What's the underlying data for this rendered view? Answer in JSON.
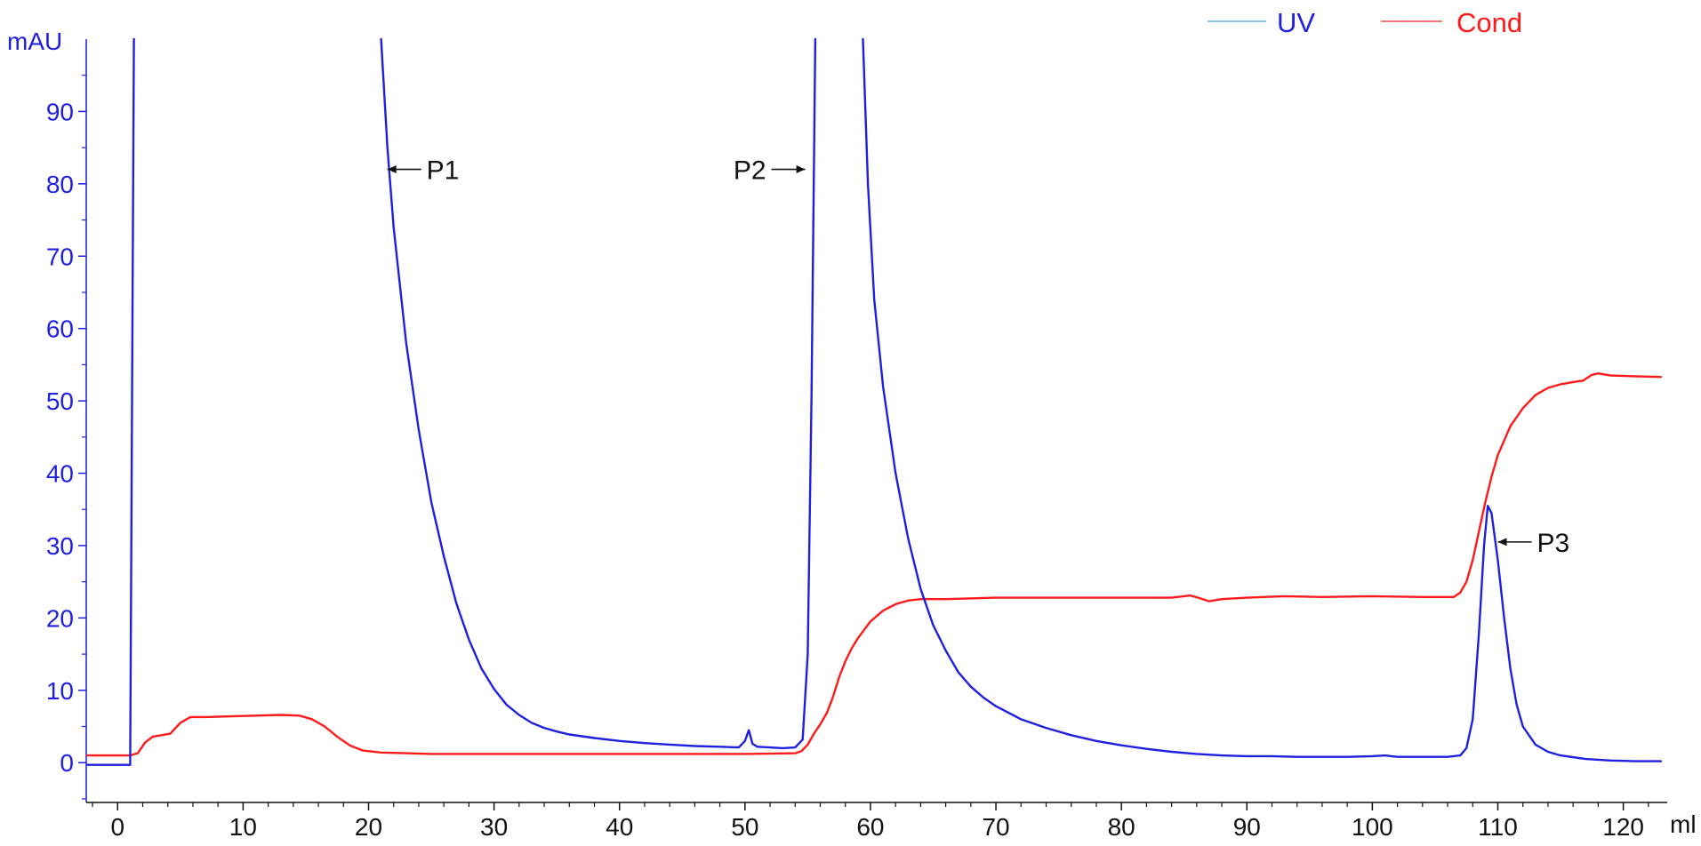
{
  "chart_data": {
    "type": "line",
    "title": "",
    "ylabel": "mAU",
    "xlabel": "ml",
    "xlim": [
      -2.5,
      123.5
    ],
    "ylim": [
      -5.5,
      100
    ],
    "x_ticks": [
      0,
      10,
      20,
      30,
      40,
      50,
      60,
      70,
      80,
      90,
      100,
      110,
      120
    ],
    "y_ticks": [
      0,
      10,
      20,
      30,
      40,
      50,
      60,
      70,
      80,
      90
    ],
    "grid": false,
    "legend_position": "top-right",
    "legend": [
      {
        "label": "UV",
        "color": "#8fc3f0"
      },
      {
        "label": "Cond",
        "color": "#f07878"
      }
    ],
    "series": [
      {
        "name": "UV",
        "color": "#1f1fe0",
        "points": [
          [
            -2.4,
            -0.3
          ],
          [
            1.0,
            -0.3
          ],
          [
            1.15,
            50
          ],
          [
            1.3,
            100
          ],
          [
            null,
            null
          ],
          [
            21.0,
            100
          ],
          [
            21.5,
            85
          ],
          [
            22.0,
            74
          ],
          [
            23.0,
            58
          ],
          [
            24.0,
            46
          ],
          [
            25.0,
            36
          ],
          [
            26.0,
            28.5
          ],
          [
            27.0,
            22
          ],
          [
            28.0,
            17
          ],
          [
            29.0,
            13
          ],
          [
            30.0,
            10.2
          ],
          [
            31.0,
            8.0
          ],
          [
            32.0,
            6.6
          ],
          [
            33.0,
            5.5
          ],
          [
            34.0,
            4.8
          ],
          [
            35.0,
            4.3
          ],
          [
            36.0,
            3.9
          ],
          [
            38.0,
            3.4
          ],
          [
            40.0,
            3.0
          ],
          [
            42.0,
            2.7
          ],
          [
            44.0,
            2.5
          ],
          [
            46.0,
            2.3
          ],
          [
            48.0,
            2.2
          ],
          [
            49.5,
            2.1
          ],
          [
            50.0,
            3.0
          ],
          [
            50.3,
            4.5
          ],
          [
            50.6,
            2.6
          ],
          [
            51.0,
            2.2
          ],
          [
            52.0,
            2.1
          ],
          [
            53.0,
            2.0
          ],
          [
            54.0,
            2.1
          ],
          [
            54.6,
            3.2
          ],
          [
            55.0,
            15
          ],
          [
            55.3,
            50
          ],
          [
            55.6,
            100
          ],
          [
            null,
            null
          ],
          [
            59.4,
            100
          ],
          [
            59.8,
            80
          ],
          [
            60.3,
            64
          ],
          [
            61.0,
            52
          ],
          [
            62.0,
            40
          ],
          [
            63.0,
            31
          ],
          [
            64.0,
            24
          ],
          [
            65.0,
            19
          ],
          [
            66.0,
            15.5
          ],
          [
            67.0,
            12.5
          ],
          [
            68.0,
            10.5
          ],
          [
            69.0,
            9.0
          ],
          [
            70.0,
            7.8
          ],
          [
            72.0,
            6.0
          ],
          [
            74.0,
            4.8
          ],
          [
            76.0,
            3.8
          ],
          [
            78.0,
            3.0
          ],
          [
            80.0,
            2.4
          ],
          [
            82.0,
            1.9
          ],
          [
            84.0,
            1.5
          ],
          [
            86.0,
            1.2
          ],
          [
            88.0,
            1.0
          ],
          [
            90.0,
            0.9
          ],
          [
            92.0,
            0.9
          ],
          [
            94.0,
            0.8
          ],
          [
            96.0,
            0.8
          ],
          [
            98.0,
            0.8
          ],
          [
            100.0,
            0.9
          ],
          [
            101.0,
            1.0
          ],
          [
            102.0,
            0.8
          ],
          [
            104.0,
            0.8
          ],
          [
            106.0,
            0.8
          ],
          [
            107.0,
            1.0
          ],
          [
            107.5,
            2.0
          ],
          [
            108.0,
            6.0
          ],
          [
            108.5,
            18.0
          ],
          [
            108.9,
            30.0
          ],
          [
            109.2,
            35.5
          ],
          [
            109.5,
            34.5
          ],
          [
            110.0,
            28.0
          ],
          [
            110.5,
            20.0
          ],
          [
            111.0,
            13.0
          ],
          [
            111.5,
            8.0
          ],
          [
            112.0,
            5.0
          ],
          [
            113.0,
            2.5
          ],
          [
            114.0,
            1.5
          ],
          [
            115.0,
            1.0
          ],
          [
            117.0,
            0.5
          ],
          [
            119.0,
            0.3
          ],
          [
            121.0,
            0.2
          ],
          [
            123.0,
            0.2
          ]
        ]
      },
      {
        "name": "Cond",
        "color": "#ff1a1a",
        "points": [
          [
            -2.4,
            1.0
          ],
          [
            1.0,
            1.0
          ],
          [
            1.6,
            1.3
          ],
          [
            2.2,
            2.8
          ],
          [
            2.8,
            3.6
          ],
          [
            3.5,
            3.8
          ],
          [
            4.2,
            4.0
          ],
          [
            5.0,
            5.5
          ],
          [
            5.8,
            6.3
          ],
          [
            7.0,
            6.3
          ],
          [
            9.0,
            6.4
          ],
          [
            11.0,
            6.5
          ],
          [
            13.0,
            6.6
          ],
          [
            14.5,
            6.5
          ],
          [
            15.5,
            6.0
          ],
          [
            16.5,
            5.0
          ],
          [
            17.5,
            3.6
          ],
          [
            18.5,
            2.4
          ],
          [
            19.5,
            1.7
          ],
          [
            21.0,
            1.4
          ],
          [
            23.0,
            1.3
          ],
          [
            25.0,
            1.2
          ],
          [
            30.0,
            1.2
          ],
          [
            35.0,
            1.2
          ],
          [
            40.0,
            1.2
          ],
          [
            45.0,
            1.2
          ],
          [
            50.0,
            1.2
          ],
          [
            54.0,
            1.3
          ],
          [
            54.5,
            1.6
          ],
          [
            55.0,
            2.5
          ],
          [
            55.5,
            4.0
          ],
          [
            56.0,
            5.3
          ],
          [
            56.5,
            6.8
          ],
          [
            57.0,
            9.0
          ],
          [
            57.5,
            11.8
          ],
          [
            58.0,
            14.0
          ],
          [
            58.5,
            15.8
          ],
          [
            59.0,
            17.2
          ],
          [
            60.0,
            19.5
          ],
          [
            61.0,
            21.0
          ],
          [
            62.0,
            21.9
          ],
          [
            63.0,
            22.4
          ],
          [
            64.0,
            22.6
          ],
          [
            66.0,
            22.6
          ],
          [
            70.0,
            22.8
          ],
          [
            75.0,
            22.8
          ],
          [
            80.0,
            22.8
          ],
          [
            84.0,
            22.8
          ],
          [
            85.5,
            23.1
          ],
          [
            86.3,
            22.7
          ],
          [
            87.0,
            22.3
          ],
          [
            88.0,
            22.6
          ],
          [
            90.0,
            22.8
          ],
          [
            93.0,
            23.0
          ],
          [
            96.0,
            22.9
          ],
          [
            100.0,
            23.0
          ],
          [
            104.0,
            22.9
          ],
          [
            106.5,
            22.9
          ],
          [
            107.0,
            23.5
          ],
          [
            107.5,
            25.0
          ],
          [
            108.0,
            28.0
          ],
          [
            108.5,
            32.0
          ],
          [
            109.0,
            36.0
          ],
          [
            109.5,
            39.5
          ],
          [
            110.0,
            42.5
          ],
          [
            111.0,
            46.5
          ],
          [
            112.0,
            49.0
          ],
          [
            113.0,
            50.8
          ],
          [
            114.0,
            51.8
          ],
          [
            115.0,
            52.3
          ],
          [
            116.0,
            52.6
          ],
          [
            116.8,
            52.8
          ],
          [
            117.5,
            53.6
          ],
          [
            118.0,
            53.8
          ],
          [
            119.0,
            53.5
          ],
          [
            121.0,
            53.4
          ],
          [
            123.0,
            53.3
          ]
        ]
      }
    ],
    "annotations": [
      {
        "label": "P1",
        "direction": "left",
        "x": 21.5,
        "y": 82
      },
      {
        "label": "P2",
        "direction": "right",
        "x": 54.8,
        "y": 82
      },
      {
        "label": "P3",
        "direction": "left",
        "x": 110.0,
        "y": 30.5
      }
    ]
  }
}
